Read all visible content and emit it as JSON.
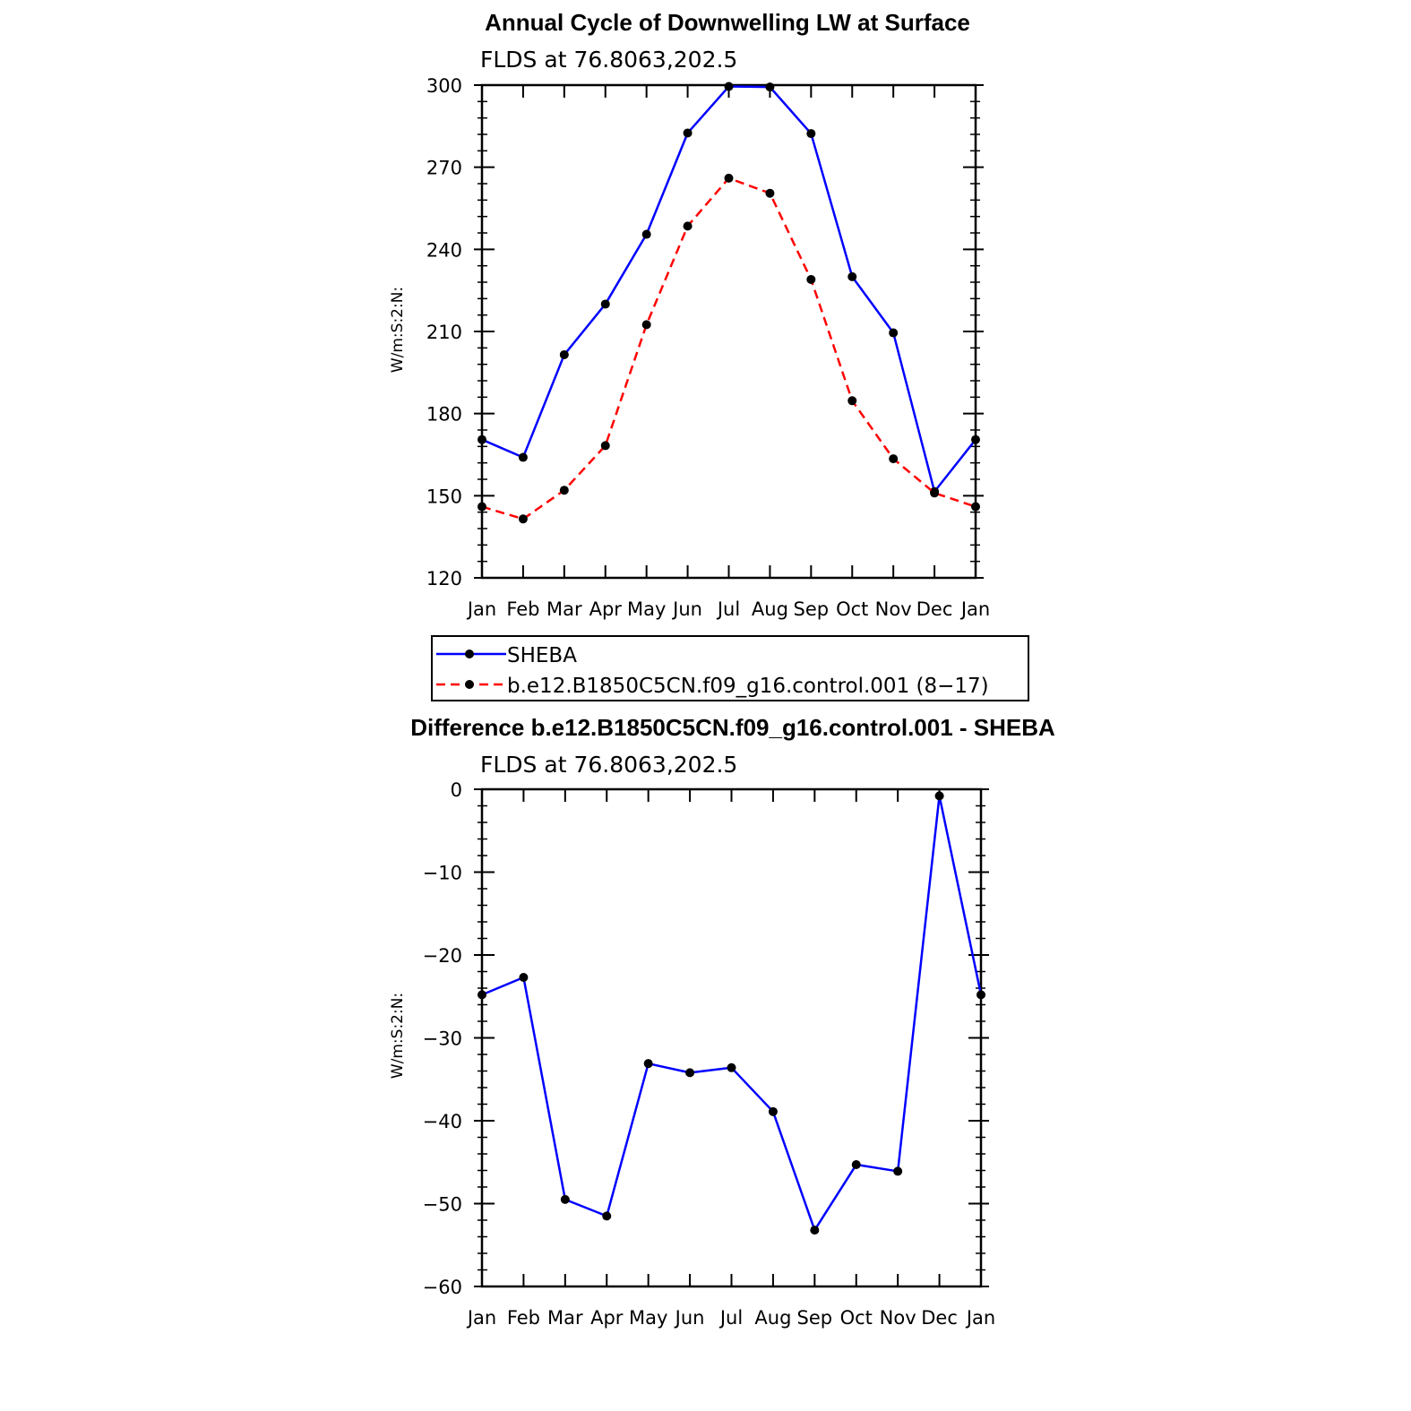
{
  "chart_data": [
    {
      "type": "line",
      "title": "Annual Cycle of Downwelling LW at Surface",
      "subtitle": "FLDS at 76.8063,202.5",
      "ylabel": "W/m:S:2:N:",
      "xlabel": "",
      "categories": [
        "Jan",
        "Feb",
        "Mar",
        "Apr",
        "May",
        "Jun",
        "Jul",
        "Aug",
        "Sep",
        "Oct",
        "Nov",
        "Dec",
        "Jan"
      ],
      "ylim": [
        120,
        300
      ],
      "yticks": [
        120,
        150,
        180,
        210,
        240,
        270,
        300
      ],
      "legend_position": "below",
      "series": [
        {
          "name": "SHEBA",
          "color": "#0000ff",
          "dash": "solid",
          "values": [
            170.5,
            164,
            201.5,
            220,
            245.5,
            282.5,
            299.5,
            299.3,
            282.3,
            230,
            209.5,
            151.5,
            170.5
          ]
        },
        {
          "name": "b.e12.B1850C5CN.f09_g16.control.001 (8−17)",
          "color": "#ff0000",
          "dash": "dashed",
          "values": [
            146,
            141.5,
            152,
            168.3,
            212.5,
            248.5,
            266,
            260.5,
            229,
            184.7,
            163.5,
            151,
            146
          ]
        }
      ]
    },
    {
      "type": "line",
      "title": "Difference b.e12.B1850C5CN.f09_g16.control.001 - SHEBA",
      "subtitle": "FLDS at 76.8063,202.5",
      "ylabel": "W/m:S:2:N:",
      "xlabel": "",
      "categories": [
        "Jan",
        "Feb",
        "Mar",
        "Apr",
        "May",
        "Jun",
        "Jul",
        "Aug",
        "Sep",
        "Oct",
        "Nov",
        "Dec",
        "Jan"
      ],
      "ylim": [
        -60,
        0
      ],
      "yticks": [
        -60,
        -50,
        -40,
        -30,
        -20,
        -10,
        0
      ],
      "ytick_labels": [
        "−60",
        "−50",
        "−40",
        "−30",
        "−20",
        "−10",
        "0"
      ],
      "series": [
        {
          "color": "#0000ff",
          "dash": "solid",
          "values": [
            -24.8,
            -22.7,
            -49.5,
            -51.5,
            -33.1,
            -34.2,
            -33.6,
            -38.9,
            -53.2,
            -45.3,
            -46.1,
            -0.8,
            -24.8
          ]
        }
      ]
    }
  ]
}
